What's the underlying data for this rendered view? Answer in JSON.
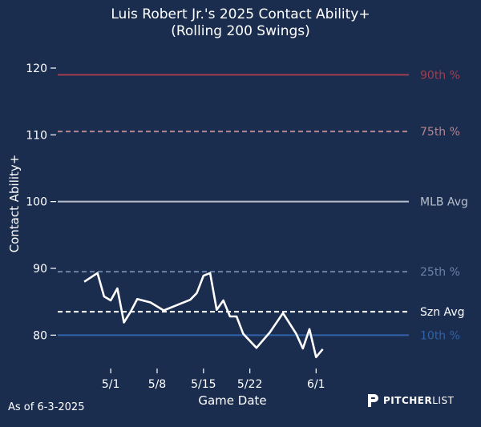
{
  "chart_data": {
    "type": "line",
    "title": "Luis Robert Jr.'s 2025 Contact Ability+",
    "subtitle": "(Rolling 200 Swings)",
    "xlabel": "Game Date",
    "ylabel": "Contact Ability+",
    "ylim": [
      75,
      123
    ],
    "xlim": [
      -8,
      45
    ],
    "yticks": [
      80,
      90,
      100,
      110,
      120
    ],
    "xticks": [
      {
        "label": "5/1",
        "x": 0
      },
      {
        "label": "5/8",
        "x": 7
      },
      {
        "label": "5/15",
        "x": 14
      },
      {
        "label": "5/22",
        "x": 21
      },
      {
        "label": "6/1",
        "x": 31
      }
    ],
    "grid": false,
    "series": [
      {
        "points": [
          [
            -4,
            88.0
          ],
          [
            -2,
            89.3
          ],
          [
            -1,
            85.8
          ],
          [
            0,
            85.2
          ],
          [
            1,
            87.0
          ],
          [
            2,
            81.9
          ],
          [
            3,
            83.5
          ],
          [
            4,
            85.4
          ],
          [
            6,
            84.9
          ],
          [
            8,
            83.7
          ],
          [
            10,
            84.5
          ],
          [
            12,
            85.3
          ],
          [
            13,
            86.3
          ],
          [
            14,
            88.9
          ],
          [
            15,
            89.3
          ],
          [
            16,
            83.8
          ],
          [
            17,
            85.2
          ],
          [
            18,
            82.8
          ],
          [
            19,
            82.8
          ],
          [
            20,
            80.2
          ],
          [
            22,
            78.1
          ],
          [
            24,
            80.4
          ],
          [
            26,
            83.3
          ],
          [
            28,
            80.2
          ],
          [
            29,
            78.0
          ],
          [
            30,
            80.9
          ],
          [
            31,
            76.7
          ],
          [
            32,
            77.9
          ]
        ]
      }
    ],
    "reference_lines": [
      {
        "label": "90th %",
        "value": 119,
        "color": "#a33d4e",
        "style": "solid"
      },
      {
        "label": "75th %",
        "value": 110.5,
        "color": "#b8848f",
        "style": "dashed"
      },
      {
        "label": "MLB Avg",
        "value": 100,
        "color": "#b9bfcc",
        "style": "solid"
      },
      {
        "label": "25th %",
        "value": 89.5,
        "color": "#6b82a8",
        "style": "dashed"
      },
      {
        "label": "Szn Avg",
        "value": 83.5,
        "color": "#ffffff",
        "style": "dashed"
      },
      {
        "label": "10th %",
        "value": 80,
        "color": "#2f62a6",
        "style": "solid"
      }
    ]
  },
  "footer": {
    "as_of": "As of 6-3-2025",
    "logo_bold": "PITCHER",
    "logo_thin": "LIST"
  }
}
